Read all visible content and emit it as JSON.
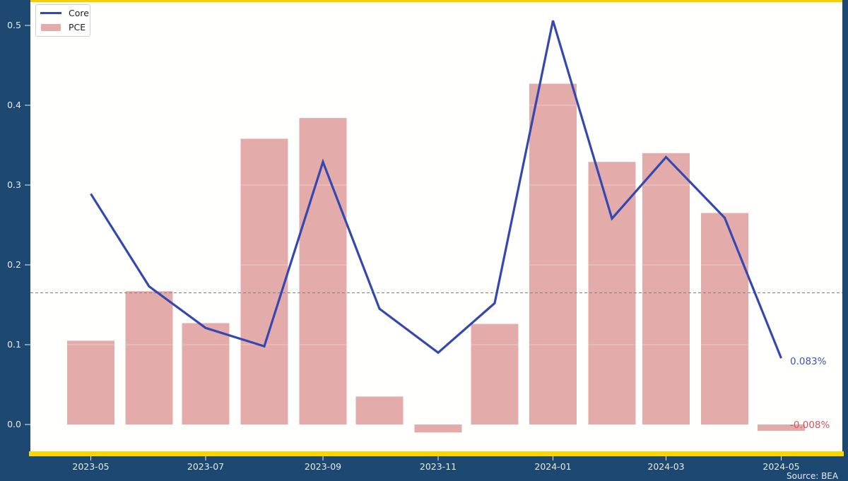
{
  "chart_data": {
    "type": "bar+line",
    "title": "",
    "xlabel": "",
    "ylabel": "",
    "categories": [
      "2023-05",
      "2023-06",
      "2023-07",
      "2023-08",
      "2023-09",
      "2023-10",
      "2023-11",
      "2023-12",
      "2024-01",
      "2024-02",
      "2024-03",
      "2024-04",
      "2024-05"
    ],
    "x_tick_labels": [
      "2023-05",
      "2023-07",
      "2023-09",
      "2023-11",
      "2024-01",
      "2024-03",
      "2024-05"
    ],
    "y_tick_labels": [
      "0.0",
      "0.1",
      "0.2",
      "0.3",
      "0.4",
      "0.5"
    ],
    "ylim": [
      -0.035,
      0.53
    ],
    "grid": false,
    "legend_position": "upper left",
    "series": [
      {
        "name": "Core",
        "type": "line",
        "color": "#3448b0",
        "values": [
          0.289,
          0.173,
          0.121,
          0.098,
          0.329,
          0.145,
          0.09,
          0.152,
          0.506,
          0.258,
          0.335,
          0.259,
          0.083
        ]
      },
      {
        "name": "PCE",
        "type": "bar",
        "color": "#e4abab",
        "values": [
          0.105,
          0.167,
          0.127,
          0.358,
          0.384,
          0.035,
          -0.01,
          0.126,
          0.427,
          0.329,
          0.34,
          0.265,
          -0.008
        ]
      }
    ],
    "reference_line": {
      "y": 0.165,
      "style": "dashed",
      "color": "#888888"
    },
    "annotations": [
      {
        "text": "0.083%",
        "series": "Core",
        "color": "#3a52c0"
      },
      {
        "text": "-0.008%",
        "series": "PCE",
        "color": "#d9545a"
      }
    ]
  },
  "legend": {
    "core_label": "Core",
    "pce_label": "PCE"
  },
  "annotations": {
    "core_last": "0.083%",
    "pce_last": "-0.008%"
  },
  "source": "Source: BEA"
}
